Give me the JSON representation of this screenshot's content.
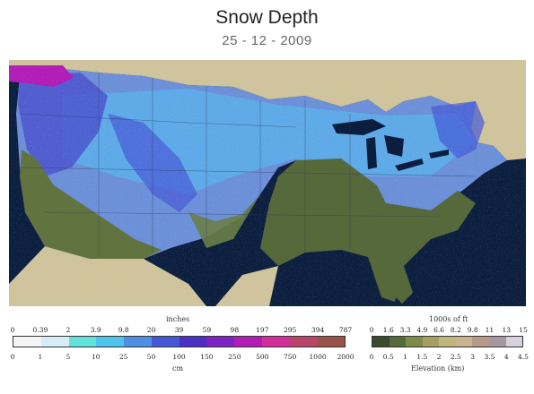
{
  "title": "Snow Depth",
  "date": "25 - 12 - 2009",
  "snow_legend": {
    "top_unit": "inches",
    "bottom_unit": "cm",
    "inches_ticks": [
      "0",
      "0.39",
      "2",
      "3.9",
      "9.8",
      "20",
      "39",
      "59",
      "98",
      "197",
      "295",
      "394",
      "787"
    ],
    "cm_ticks": [
      "0",
      "1",
      "5",
      "10",
      "25",
      "50",
      "100",
      "150",
      "250",
      "500",
      "750",
      "1000",
      "2000"
    ],
    "colors": [
      "#f4f4f4",
      "#d7eef6",
      "#61e3dc",
      "#4fc3f0",
      "#4f8fe3",
      "#4557d6",
      "#4b2ec6",
      "#7d22c4",
      "#b11cb6",
      "#d62d9c",
      "#b9446c",
      "#9b5249"
    ]
  },
  "elevation_legend": {
    "top_unit": "1000s of ft",
    "bottom_unit": "Elevation (km)",
    "ft_ticks": [
      "0",
      "1.6",
      "3.3",
      "4.9",
      "6.6",
      "8.2",
      "9.8",
      "11",
      "13",
      "15"
    ],
    "km_ticks": [
      "0",
      "0.5",
      "1",
      "1.5",
      "2",
      "2.5",
      "3",
      "3.5",
      "4",
      "4.5"
    ],
    "colors": [
      "#3b4a2a",
      "#556b37",
      "#7d8a4c",
      "#a3a063",
      "#bfb57d",
      "#c9b48e",
      "#b69a87",
      "#a8989e",
      "#d8d0dc"
    ]
  },
  "map": {
    "ocean_color": "#0b1e3e",
    "land_color": "#cfc39c",
    "snow_free_color": "#56693b",
    "lake_color": "#0b1e3e"
  }
}
